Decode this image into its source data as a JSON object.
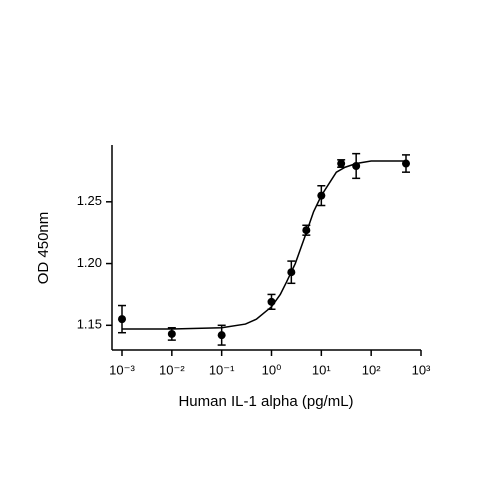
{
  "chart_data": {
    "type": "scatter",
    "x_label": "Human IL-1 alpha (pg/mL)",
    "y_label": "OD 450nm",
    "log_x": true,
    "xlim": [
      0.00063,
      1000
    ],
    "xticks": [
      {
        "value": 0.001,
        "label": "10⁻³"
      },
      {
        "value": 0.01,
        "label": "10⁻²"
      },
      {
        "value": 0.1,
        "label": "10⁻¹"
      },
      {
        "value": 1,
        "label": "10⁰"
      },
      {
        "value": 10,
        "label": "10¹"
      },
      {
        "value": 100,
        "label": "10²"
      },
      {
        "value": 1000,
        "label": "10³"
      }
    ],
    "ylim": [
      1.13,
      1.296
    ],
    "yticks": [
      1.15,
      {
        "value": 1.2,
        "label": "1.20"
      },
      1.25
    ],
    "series": [
      {
        "type": "scatter",
        "color": "#000000",
        "x": [
          0.001,
          0.01,
          0.1,
          1,
          2.5,
          5,
          10,
          25,
          50,
          500
        ],
        "values": [
          1.155,
          1.143,
          1.142,
          1.169,
          1.193,
          1.227,
          1.255,
          1.281,
          1.279,
          1.281
        ],
        "errors": [
          0.011,
          0.005,
          0.008,
          0.006,
          0.009,
          0.004,
          0.008,
          0.003,
          0.01,
          0.007
        ]
      },
      {
        "type": "line",
        "color": "#000000",
        "x": [
          0.001,
          0.01,
          0.1,
          0.3,
          0.5,
          1,
          1.5,
          2,
          3,
          5,
          7,
          10,
          20,
          30,
          50,
          100,
          500
        ],
        "values": [
          1.147,
          1.147,
          1.148,
          1.151,
          1.155,
          1.165,
          1.175,
          1.185,
          1.2,
          1.225,
          1.242,
          1.255,
          1.274,
          1.278,
          1.281,
          1.283,
          1.283
        ]
      }
    ]
  }
}
